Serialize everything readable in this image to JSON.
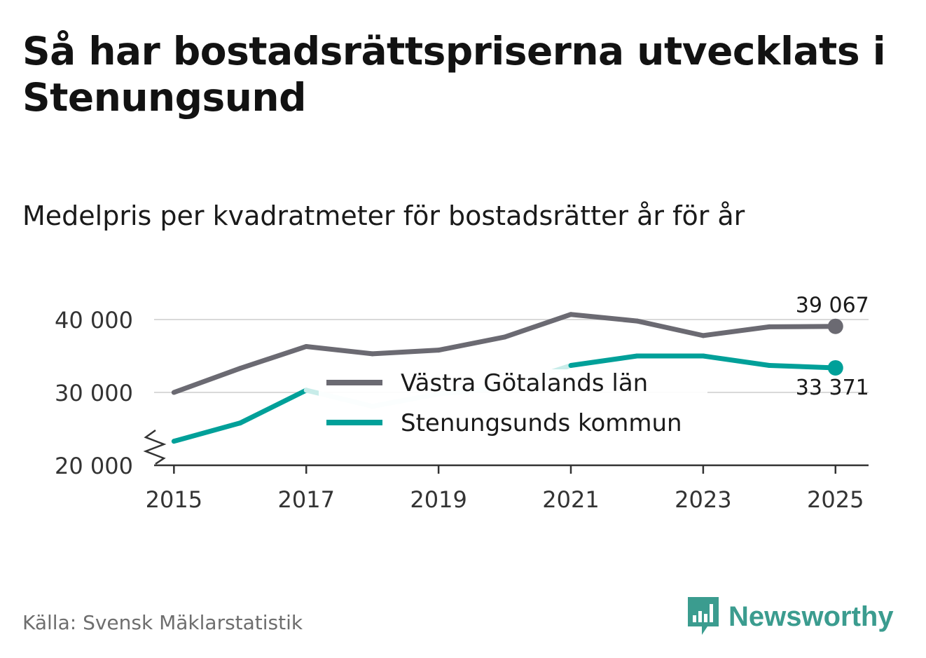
{
  "title": "Så har bostadsrättspriserna utvecklats i Stenungsund",
  "subtitle": "Medelpris per kvadratmeter för bostadsrätter år för år",
  "source": "Källa: Svensk Mäklarstatistik",
  "brand": {
    "name": "Newsworthy",
    "color": "#3b9c8f"
  },
  "chart_data": {
    "type": "line",
    "title": "Så har bostadsrättspriserna utvecklats i Stenungsund",
    "subtitle": "Medelpris per kvadratmeter för bostadsrätter år för år",
    "xlabel": "",
    "ylabel": "",
    "x": [
      2015,
      2016,
      2017,
      2018,
      2019,
      2020,
      2021,
      2022,
      2023,
      2024,
      2025
    ],
    "xlim": [
      2014.7,
      2025.5
    ],
    "ylim": [
      20000,
      40000
    ],
    "x_ticks": [
      2015,
      2017,
      2019,
      2021,
      2023,
      2025
    ],
    "x_tick_labels": [
      "2015",
      "2017",
      "2019",
      "2021",
      "2023",
      "2025"
    ],
    "y_ticks": [
      20000,
      30000,
      40000
    ],
    "y_tick_labels": [
      "20 000",
      "30 000",
      "40 000"
    ],
    "axis_break": true,
    "grid": true,
    "legend_position": "center",
    "series": [
      {
        "name": "Västra Götalands län",
        "color": "#6b6a72",
        "values": [
          30000,
          33300,
          36300,
          35300,
          35800,
          37600,
          40700,
          39800,
          37800,
          39000,
          39067
        ],
        "end_label": "39 067"
      },
      {
        "name": "Stenungsunds kommun",
        "color": "#00a099",
        "faded_color": "#c8ece9",
        "faded_segments": [
          [
            2017,
            2021
          ]
        ],
        "values": [
          23300,
          25800,
          30300,
          28100,
          29800,
          30700,
          33700,
          35000,
          35000,
          33700,
          33371
        ],
        "end_label": "33 371"
      }
    ]
  }
}
